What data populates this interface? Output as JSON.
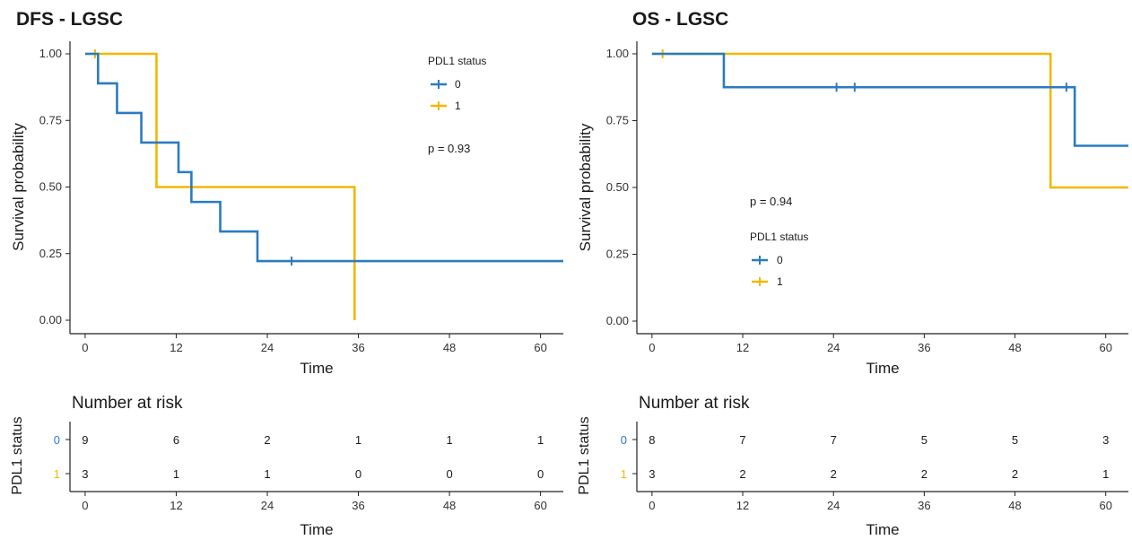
{
  "chart_data": [
    {
      "type": "line",
      "subtype": "kaplan-meier",
      "title": "DFS - LGSC",
      "xlabel": "Time",
      "ylabel": "Survival probability",
      "xlim": [
        -2,
        63
      ],
      "ylim": [
        0,
        1
      ],
      "x_ticks": [
        "0",
        "12",
        "24",
        "36",
        "48",
        "60"
      ],
      "y_ticks": [
        "0.00",
        "0.25",
        "0.50",
        "0.75",
        "1.00"
      ],
      "legend_title": "PDL1 status",
      "legend_position": "top-right",
      "p_value": "p = 0.93",
      "series": [
        {
          "name": "0",
          "color": "#2b7bc1",
          "steps": [
            [
              0,
              1.0
            ],
            [
              1.7,
              0.889
            ],
            [
              4.2,
              0.778
            ],
            [
              7.4,
              0.667
            ],
            [
              12.3,
              0.556
            ],
            [
              14.0,
              0.444
            ],
            [
              17.8,
              0.333
            ],
            [
              22.7,
              0.222
            ],
            [
              63,
              0.222
            ]
          ],
          "censored": [
            [
              27.2,
              0.222
            ]
          ]
        },
        {
          "name": "1",
          "color": "#f2b705",
          "steps": [
            [
              0,
              1.0
            ],
            [
              9.4,
              0.5
            ],
            [
              35.5,
              0.0
            ]
          ],
          "censored": [
            [
              1.3,
              1.0
            ]
          ]
        }
      ],
      "risk_table": {
        "title": "Number at risk",
        "ylabel": "PDL1 status",
        "xlabel": "Time",
        "times": [
          "0",
          "12",
          "24",
          "36",
          "48",
          "60"
        ],
        "rows": [
          {
            "group": "0",
            "color": "#2b7bc1",
            "values": [
              "9",
              "6",
              "2",
              "1",
              "1",
              "1"
            ]
          },
          {
            "group": "1",
            "color": "#f2b705",
            "values": [
              "3",
              "1",
              "1",
              "0",
              "0",
              "0"
            ]
          }
        ]
      }
    },
    {
      "type": "line",
      "subtype": "kaplan-meier",
      "title": "OS - LGSC",
      "xlabel": "Time",
      "ylabel": "Survival probability",
      "xlim": [
        -2,
        63
      ],
      "ylim": [
        0,
        1
      ],
      "x_ticks": [
        "0",
        "12",
        "24",
        "36",
        "48",
        "60"
      ],
      "y_ticks": [
        "0.00",
        "0.25",
        "0.50",
        "0.75",
        "1.00"
      ],
      "legend_title": "PDL1 status",
      "legend_position": "center",
      "p_value": "p = 0.94",
      "series": [
        {
          "name": "0",
          "color": "#2b7bc1",
          "steps": [
            [
              0,
              1.0
            ],
            [
              9.5,
              0.875
            ],
            [
              55.9,
              0.656
            ],
            [
              63,
              0.656
            ]
          ],
          "censored": [
            [
              24.4,
              0.875
            ],
            [
              26.8,
              0.875
            ],
            [
              54.8,
              0.875
            ]
          ]
        },
        {
          "name": "1",
          "color": "#f2b705",
          "steps": [
            [
              0,
              1.0
            ],
            [
              52.7,
              0.5
            ],
            [
              63,
              0.5
            ]
          ],
          "censored": [
            [
              1.4,
              1.0
            ]
          ]
        }
      ],
      "risk_table": {
        "title": "Number at risk",
        "ylabel": "PDL1 status",
        "xlabel": "Time",
        "times": [
          "0",
          "12",
          "24",
          "36",
          "48",
          "60"
        ],
        "rows": [
          {
            "group": "0",
            "color": "#2b7bc1",
            "values": [
              "8",
              "7",
              "7",
              "5",
              "5",
              "3"
            ]
          },
          {
            "group": "1",
            "color": "#f2b705",
            "values": [
              "3",
              "2",
              "2",
              "2",
              "2",
              "1"
            ]
          }
        ]
      }
    }
  ]
}
